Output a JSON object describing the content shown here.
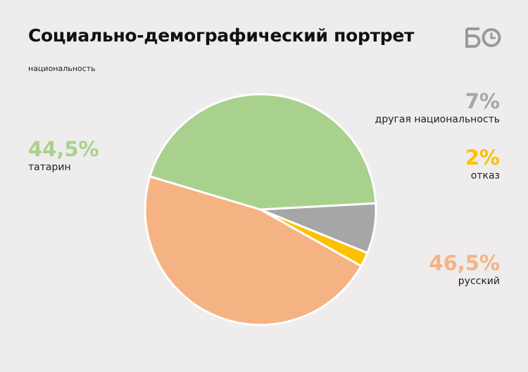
{
  "header": {
    "title": "Социально-демографический портрет",
    "subtitle": "национальность",
    "logo_text": "БО"
  },
  "colors": {
    "background": "#eeecec",
    "outline": "#ffffff"
  },
  "chart_data": {
    "type": "pie",
    "title": "Социально-демографический портрет",
    "subtitle": "национальность",
    "slices": [
      {
        "label": "русский",
        "value": 46.5,
        "display": "46,5%",
        "color": "#f5b384"
      },
      {
        "label": "татарин",
        "value": 44.5,
        "display": "44,5%",
        "color": "#a9d18e"
      },
      {
        "label": "другая национальность",
        "value": 7,
        "display": "7%",
        "color": "#a6a6a6"
      },
      {
        "label": "отказ",
        "value": 2,
        "display": "2%",
        "color": "#ffc000"
      }
    ]
  }
}
